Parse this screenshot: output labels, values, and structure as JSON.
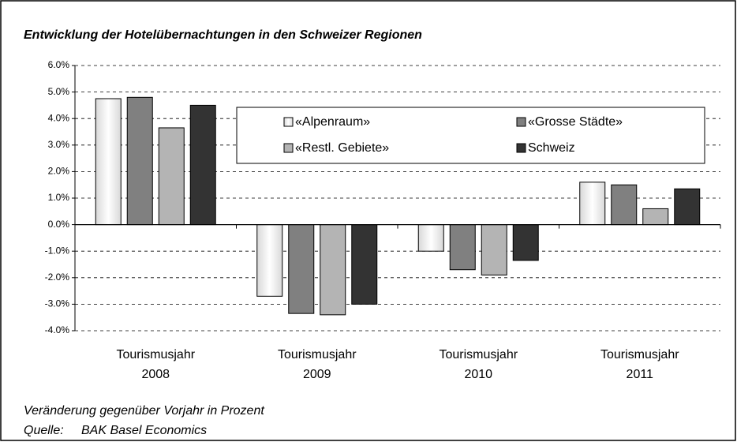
{
  "chart_data": {
    "type": "bar",
    "title": "Entwicklung der Hotelübernachtungen in den Schweizer Regionen",
    "categories": [
      "Tourismusjahr 2008",
      "Tourismusjahr 2009",
      "Tourismusjahr 2010",
      "Tourismusjahr 2011"
    ],
    "series": [
      {
        "name": "«Alpenraum»",
        "color": "#ffffff",
        "values": [
          4.75,
          -2.7,
          -1.0,
          1.6
        ]
      },
      {
        "name": "«Grosse Städte»",
        "color": "#808080",
        "values": [
          4.8,
          -3.35,
          -1.7,
          1.5
        ]
      },
      {
        "name": "«Restl. Gebiete»",
        "color": "#b4b4b4",
        "values": [
          3.65,
          -3.4,
          -1.9,
          0.6
        ]
      },
      {
        "name": "Schweiz",
        "color": "#333333",
        "values": [
          4.5,
          -3.0,
          -1.35,
          1.35
        ]
      }
    ],
    "ylim": [
      -4,
      6
    ],
    "yticks": [
      {
        "value": -4,
        "label": "-4.0%"
      },
      {
        "value": -3,
        "label": "-3.0%"
      },
      {
        "value": -2,
        "label": "-2.0%"
      },
      {
        "value": -1,
        "label": "-1.0%"
      },
      {
        "value": 0,
        "label": "0.0%"
      },
      {
        "value": 1,
        "label": "1.0%"
      },
      {
        "value": 2,
        "label": "2.0%"
      },
      {
        "value": 3,
        "label": "3.0%"
      },
      {
        "value": 4,
        "label": "4.0%"
      },
      {
        "value": 5,
        "label": "5.0%"
      },
      {
        "value": 6,
        "label": "6.0%"
      }
    ],
    "grid": true,
    "note": "Veränderung gegenüber Vorjahr in Prozent",
    "source_label": "Quelle:",
    "source": "BAK Basel Economics"
  }
}
